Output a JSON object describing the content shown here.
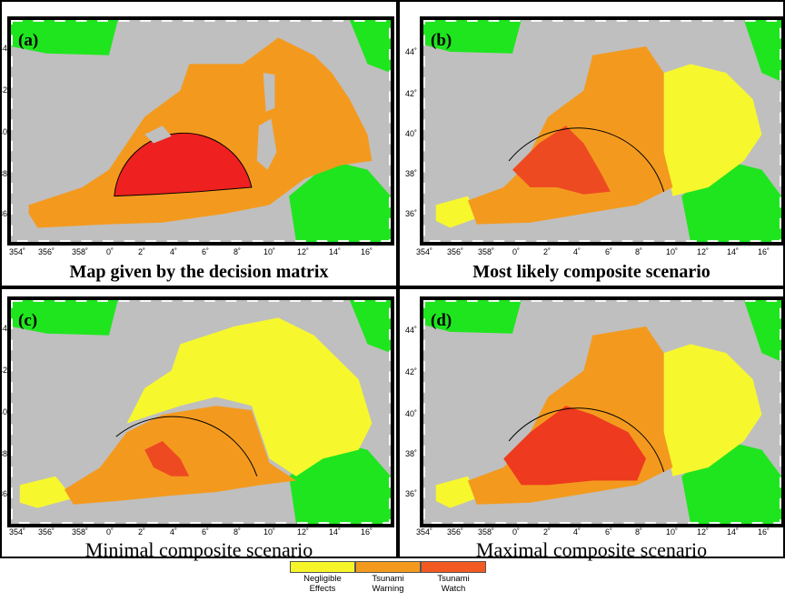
{
  "panels": [
    {
      "id": "a",
      "letter": "(a)",
      "caption": "Map given by the decision matrix",
      "style": "bold"
    },
    {
      "id": "b",
      "letter": "(b)",
      "caption": "Most likely composite scenario",
      "style": "bold"
    },
    {
      "id": "c",
      "letter": "(c)",
      "caption": "Minimal composite scenario",
      "style": "reg"
    },
    {
      "id": "d",
      "letter": "(d)",
      "caption": "Maximal composite scenario",
      "style": "reg"
    }
  ],
  "axes": {
    "lon_ticks": [
      "354˚",
      "356˚",
      "358˚",
      "0˚",
      "2˚",
      "4˚",
      "6˚",
      "8˚",
      "10˚",
      "12˚",
      "14˚",
      "16˚"
    ],
    "lat_ticks": [
      "44˚",
      "42˚",
      "40˚",
      "38˚",
      "36˚"
    ]
  },
  "legend": [
    {
      "label_line1": "Negligible",
      "label_line2": "Effects",
      "color": "#f5f52a"
    },
    {
      "label_line1": "Tsunami",
      "label_line2": "Warning",
      "color": "#f39a1e"
    },
    {
      "label_line1": "Tsunami",
      "label_line2": "Watch",
      "color": "#f25a22"
    }
  ],
  "colors": {
    "land_green": "#1fe51f",
    "relief_gray": "#bdbdbd",
    "warning_orange": "#f39a1e",
    "watch_red": "#ee2a1a",
    "negligible_yellow": "#f7f72e"
  }
}
